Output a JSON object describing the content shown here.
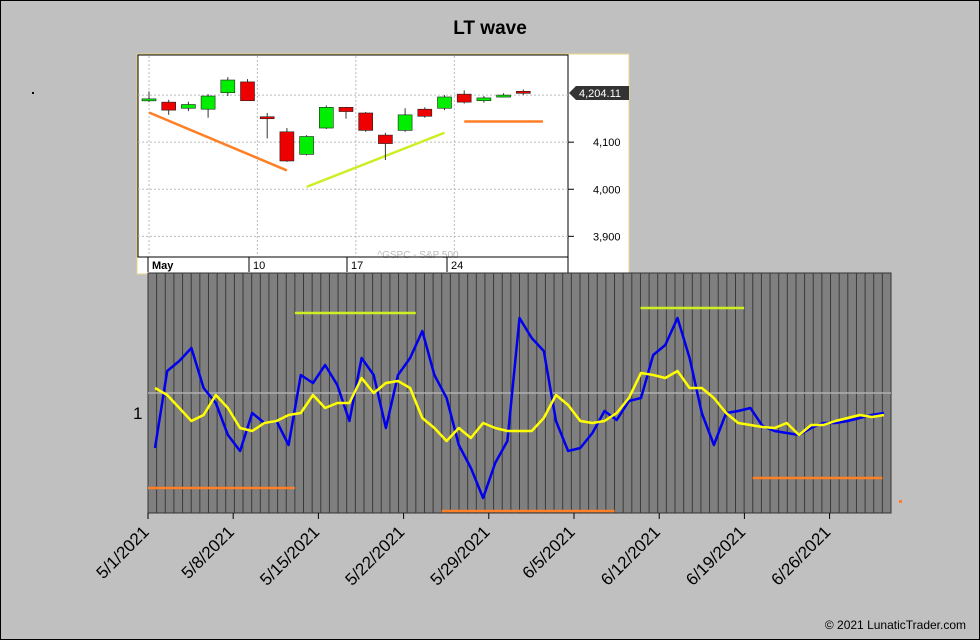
{
  "title": "LT wave",
  "copyright": "© 2021 LunaticTrader.com",
  "colors": {
    "background": "#c0c0c0",
    "plot_bg": "#7f7f7f",
    "wave_line": "#0000ee",
    "smooth_line": "#ffff00",
    "yellow_level": "#ccee22",
    "orange_level": "#ff7f27",
    "candle_up": "#00ee00",
    "candle_down": "#ee0000"
  },
  "chart_data": [
    {
      "type": "candlestick",
      "symbol_label": "^GSPC - S&P 500",
      "price_tag": "4,204.11",
      "x_tick_labels": [
        "May",
        "10",
        "17",
        "24"
      ],
      "y_tick_labels": [
        "4,100",
        "4,000",
        "3,900"
      ],
      "ylim": [
        3820,
        4300
      ],
      "grid": true,
      "candles": [
        {
          "o": 4190,
          "h": 4208,
          "l": 4185,
          "c": 4192
        },
        {
          "o": 4185,
          "h": 4190,
          "l": 4158,
          "c": 4168
        },
        {
          "o": 4172,
          "h": 4186,
          "l": 4166,
          "c": 4180
        },
        {
          "o": 4170,
          "h": 4202,
          "l": 4152,
          "c": 4198
        },
        {
          "o": 4205,
          "h": 4238,
          "l": 4198,
          "c": 4232
        },
        {
          "o": 4228,
          "h": 4234,
          "l": 4188,
          "c": 4188
        },
        {
          "o": 4154,
          "h": 4162,
          "l": 4108,
          "c": 4152
        },
        {
          "o": 4122,
          "h": 4130,
          "l": 4058,
          "c": 4060
        },
        {
          "o": 4074,
          "h": 4115,
          "l": 4072,
          "c": 4112
        },
        {
          "o": 4130,
          "h": 4178,
          "l": 4128,
          "c": 4174
        },
        {
          "o": 4174,
          "h": 4175,
          "l": 4150,
          "c": 4165
        },
        {
          "o": 4162,
          "h": 4164,
          "l": 4122,
          "c": 4125
        },
        {
          "o": 4115,
          "h": 4120,
          "l": 4062,
          "c": 4097
        },
        {
          "o": 4125,
          "h": 4172,
          "l": 4122,
          "c": 4158
        },
        {
          "o": 4170,
          "h": 4174,
          "l": 4152,
          "c": 4155
        },
        {
          "o": 4172,
          "h": 4200,
          "l": 4168,
          "c": 4196
        },
        {
          "o": 4202,
          "h": 4210,
          "l": 4182,
          "c": 4185
        },
        {
          "o": 4188,
          "h": 4198,
          "l": 4184,
          "c": 4194
        },
        {
          "o": 4200,
          "h": 4204,
          "l": 4196,
          "c": 4200
        },
        {
          "o": 4208,
          "h": 4212,
          "l": 4200,
          "c": 4204
        }
      ],
      "trendlines": [
        {
          "color": "#ff7f27",
          "from": [
            0,
            4163
          ],
          "to": [
            7,
            4040
          ]
        },
        {
          "color": "#ccee22",
          "from": [
            8,
            4005
          ],
          "to": [
            15,
            4120
          ]
        },
        {
          "color": "#ff7f27",
          "from": [
            16,
            4144
          ],
          "to": [
            20,
            4144
          ]
        }
      ]
    },
    {
      "type": "line",
      "y_tick_labels": [
        "1"
      ],
      "ylim": [
        0.0,
        2.4
      ],
      "x_tick_labels": [
        "5/1/2021",
        "5/8/2021",
        "5/15/2021",
        "5/22/2021",
        "5/29/2021",
        "6/5/2021",
        "6/12/2021",
        "6/19/2021",
        "6/26/2021"
      ],
      "x_start": "5/1/2021",
      "series": [
        {
          "role": "wave",
          "values": [
            0.65,
            1.42,
            1.52,
            1.65,
            1.25,
            1.1,
            0.78,
            0.62,
            1.0,
            0.9,
            0.92,
            0.68,
            1.38,
            1.3,
            1.48,
            1.28,
            0.92,
            1.55,
            1.38,
            0.85,
            1.38,
            1.55,
            1.82,
            1.38,
            1.15,
            0.68,
            0.45,
            0.15,
            0.5,
            0.72,
            1.95,
            1.75,
            1.62,
            0.92,
            0.62,
            0.65,
            0.8,
            1.02,
            0.93,
            1.12,
            1.15,
            1.58,
            1.68,
            1.95,
            1.55,
            1.0,
            0.68,
            1.0,
            1.02,
            1.05,
            0.87,
            0.82,
            0.8,
            0.78,
            0.85,
            0.9,
            0.9,
            0.92,
            0.95,
            0.98,
            1.0
          ]
        },
        {
          "role": "smooth",
          "values": [
            1.25,
            1.18,
            1.05,
            0.92,
            0.98,
            1.18,
            1.05,
            0.85,
            0.82,
            0.9,
            0.92,
            0.98,
            1.0,
            1.18,
            1.05,
            1.1,
            1.1,
            1.35,
            1.2,
            1.3,
            1.32,
            1.25,
            0.95,
            0.85,
            0.72,
            0.85,
            0.75,
            0.9,
            0.85,
            0.82,
            0.82,
            0.82,
            0.95,
            1.18,
            1.08,
            0.92,
            0.9,
            0.92,
            1.0,
            1.15,
            1.4,
            1.38,
            1.35,
            1.42,
            1.25,
            1.25,
            1.15,
            1.0,
            0.9,
            0.88,
            0.86,
            0.85,
            0.9,
            0.78,
            0.88,
            0.88,
            0.92,
            0.95,
            0.98,
            0.96,
            0.98
          ]
        }
      ],
      "level_lines": [
        {
          "color": "#ccee22",
          "value": 2.0,
          "x_from": 17,
          "x_to": 31
        },
        {
          "color": "#ccee22",
          "value": 2.05,
          "x_from": 57,
          "x_to": 69
        },
        {
          "color": "#ff7f27",
          "value": 0.25,
          "x_from": 0,
          "x_to": 17
        },
        {
          "color": "#ff7f27",
          "value": 0.02,
          "x_from": 34,
          "x_to": 54
        },
        {
          "color": "#ff7f27",
          "value": 0.35,
          "x_from": 70,
          "x_to": 85
        }
      ]
    }
  ]
}
